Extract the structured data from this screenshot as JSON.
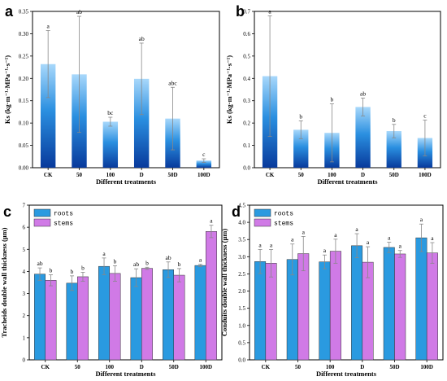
{
  "chart_data": [
    {
      "panel": "a",
      "type": "bar",
      "categories": [
        "CK",
        "50",
        "100",
        "D",
        "50D",
        "100D"
      ],
      "values": [
        0.232,
        0.209,
        0.103,
        0.199,
        0.11,
        0.016
      ],
      "errors": [
        0.075,
        0.13,
        0.01,
        0.08,
        0.07,
        0.004
      ],
      "labels": [
        "a",
        "ab",
        "bc",
        "ab",
        "abc",
        "c"
      ],
      "xlabel": "Different treatments",
      "ylabel": "Ks (kg·m⁻¹·MPa⁻¹·s⁻¹)",
      "ylim": [
        0,
        0.35
      ],
      "yticks": [
        "0.00",
        "0.05",
        "0.10",
        "0.15",
        "0.20",
        "0.25",
        "0.30",
        "0.35"
      ],
      "fill": "gradient-blue"
    },
    {
      "panel": "b",
      "type": "bar",
      "categories": [
        "CK",
        "50",
        "100",
        "D",
        "50D",
        "100D"
      ],
      "values": [
        0.41,
        0.17,
        0.156,
        0.272,
        0.164,
        0.133
      ],
      "errors": [
        0.27,
        0.04,
        0.13,
        0.04,
        0.03,
        0.08
      ],
      "labels": [
        "a",
        "b",
        "b",
        "ab",
        "b",
        "c"
      ],
      "xlabel": "Different treatments",
      "ylabel": "Ks (kg·m⁻¹·MPa⁻¹·s⁻¹)",
      "ylim": [
        0,
        0.7
      ],
      "yticks": [
        "0.0",
        "0.1",
        "0.2",
        "0.3",
        "0.4",
        "0.5",
        "0.6",
        "0.7"
      ],
      "fill": "gradient-blue"
    },
    {
      "panel": "c",
      "type": "bar",
      "categories": [
        "CK",
        "50",
        "100",
        "D",
        "50D",
        "100D"
      ],
      "series": [
        {
          "name": "roots",
          "values": [
            3.88,
            3.47,
            4.23,
            3.72,
            4.08,
            4.27
          ],
          "errors": [
            0.28,
            0.33,
            0.38,
            0.4,
            0.35,
            0.05
          ],
          "labels": [
            "ab",
            "b",
            "a",
            "ab",
            "ab",
            "a"
          ],
          "color": "#2a9ae0"
        },
        {
          "name": "stems",
          "values": [
            3.6,
            3.76,
            3.91,
            4.14,
            3.83,
            5.81
          ],
          "errors": [
            0.25,
            0.2,
            0.35,
            0.05,
            0.3,
            0.28
          ],
          "labels": [
            "b",
            "b",
            "b",
            "b",
            "b",
            "a"
          ],
          "color": "#d07ae6"
        }
      ],
      "xlabel": "Different treatments",
      "ylabel": "Tracheids double wall thickness (μm)",
      "ylim": [
        0,
        7
      ],
      "yticks": [
        "0",
        "1",
        "2",
        "3",
        "4",
        "5",
        "6",
        "7"
      ],
      "legend": "top-left"
    },
    {
      "panel": "d",
      "type": "bar",
      "categories": [
        "CK",
        "50",
        "100",
        "D",
        "50D",
        "100D"
      ],
      "series": [
        {
          "name": "roots",
          "values": [
            2.86,
            2.92,
            2.85,
            3.32,
            3.27,
            3.55
          ],
          "errors": [
            0.35,
            0.45,
            0.2,
            0.35,
            0.15,
            0.4
          ],
          "labels": [
            "a",
            "a",
            "a",
            "a",
            "a",
            "a"
          ],
          "color": "#2a9ae0"
        },
        {
          "name": "stems",
          "values": [
            2.81,
            3.09,
            3.16,
            2.84,
            3.08,
            3.11
          ],
          "errors": [
            0.4,
            0.5,
            0.35,
            0.45,
            0.1,
            0.3
          ],
          "labels": [
            "a",
            "a",
            "a",
            "a",
            "a",
            "a"
          ],
          "color": "#d07ae6"
        }
      ],
      "xlabel": "Different treatments",
      "ylabel": "Conduits double wall thickness (μm)",
      "ylim": [
        0,
        4.5
      ],
      "yticks": [
        "0.0",
        "0.5",
        "1.0",
        "1.5",
        "2.0",
        "2.5",
        "3.0",
        "3.5",
        "4.0",
        "4.5"
      ],
      "legend": "top-left"
    }
  ]
}
